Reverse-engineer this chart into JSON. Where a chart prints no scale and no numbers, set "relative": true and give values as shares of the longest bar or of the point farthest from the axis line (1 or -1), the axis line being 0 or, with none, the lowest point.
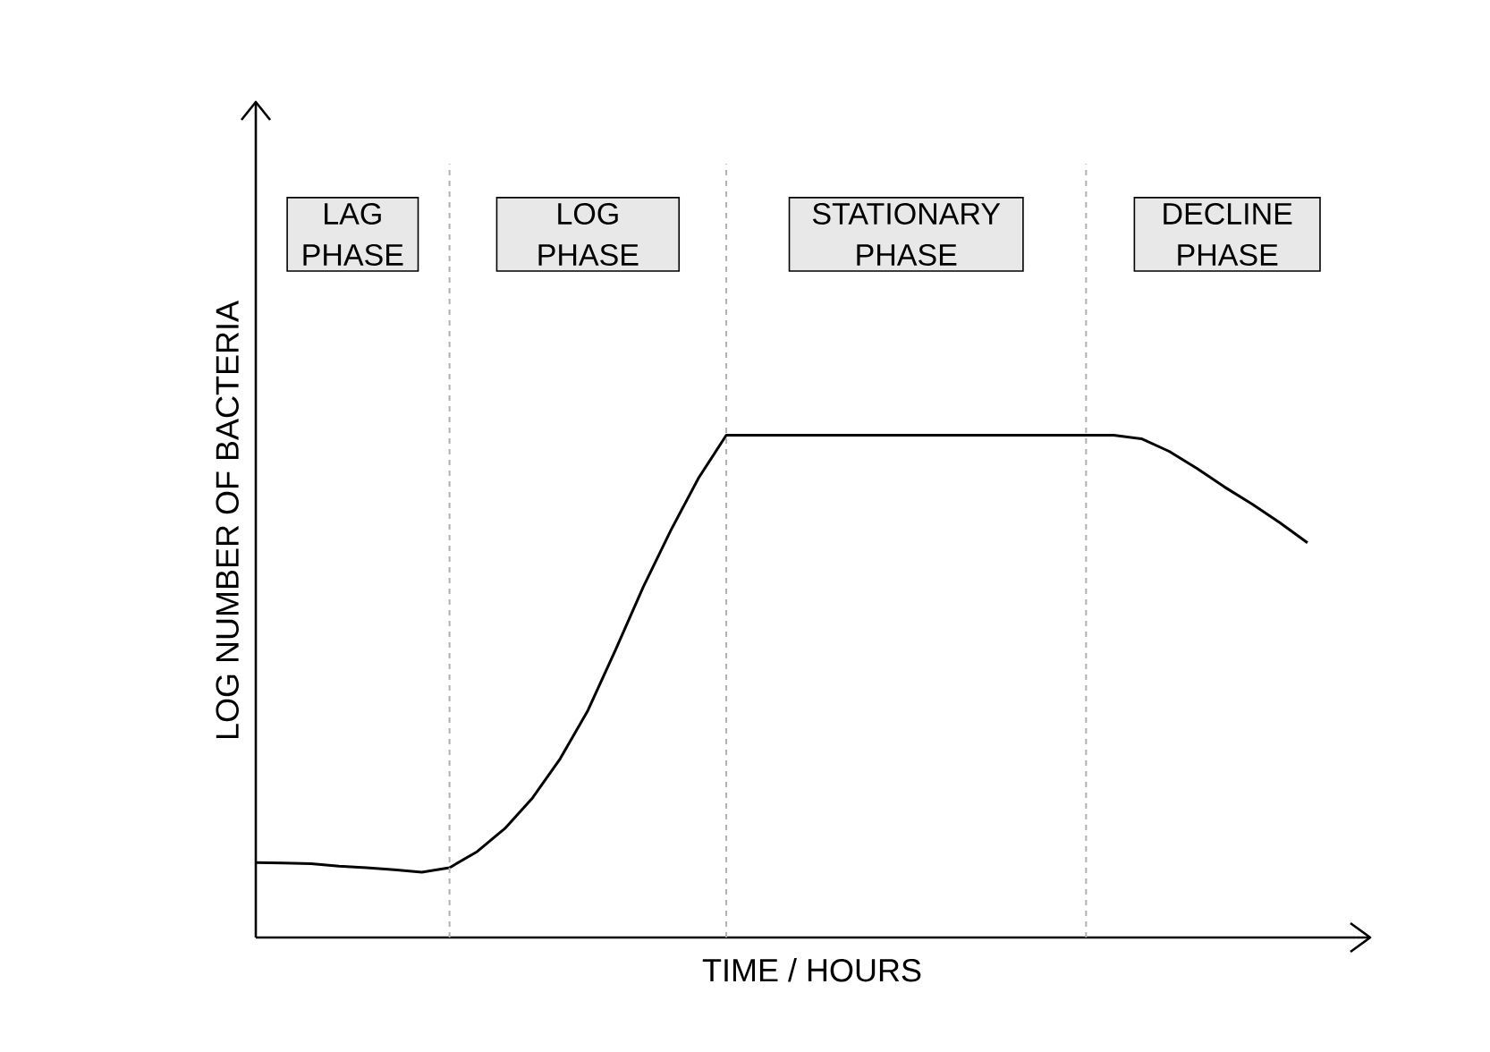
{
  "chart_data": {
    "type": "line",
    "relative": true,
    "xlabel": "TIME / HOURS",
    "ylabel": "LOG NUMBER OF BACTERIA",
    "grid": "x",
    "categories": [
      null,
      null,
      null,
      null,
      null,
      null,
      null,
      null,
      null,
      null,
      null,
      null,
      null,
      null,
      null,
      null,
      null,
      null,
      null,
      null,
      null,
      null,
      null,
      null,
      null,
      null,
      null,
      null,
      null,
      null,
      null,
      null,
      null,
      null,
      null,
      null,
      null,
      null,
      null
    ],
    "series": [
      {
        "color": "#000000",
        "values": [
          0.149,
          0.148,
          0.147,
          0.142,
          0.139,
          0.135,
          0.13,
          0.139,
          0.171,
          0.217,
          0.278,
          0.356,
          0.452,
          0.573,
          0.698,
          0.811,
          0.915,
          1,
          1,
          1,
          1,
          1,
          1,
          1,
          1,
          1,
          1,
          1,
          1,
          1,
          1,
          1,
          0.993,
          0.968,
          0.934,
          0.897,
          0.863,
          0.826,
          0.786
        ]
      }
    ],
    "annotations": [
      "LAG PHASE",
      "LOG PHASE",
      "STATIONARY PHASE",
      "DECLINE PHASE"
    ]
  }
}
